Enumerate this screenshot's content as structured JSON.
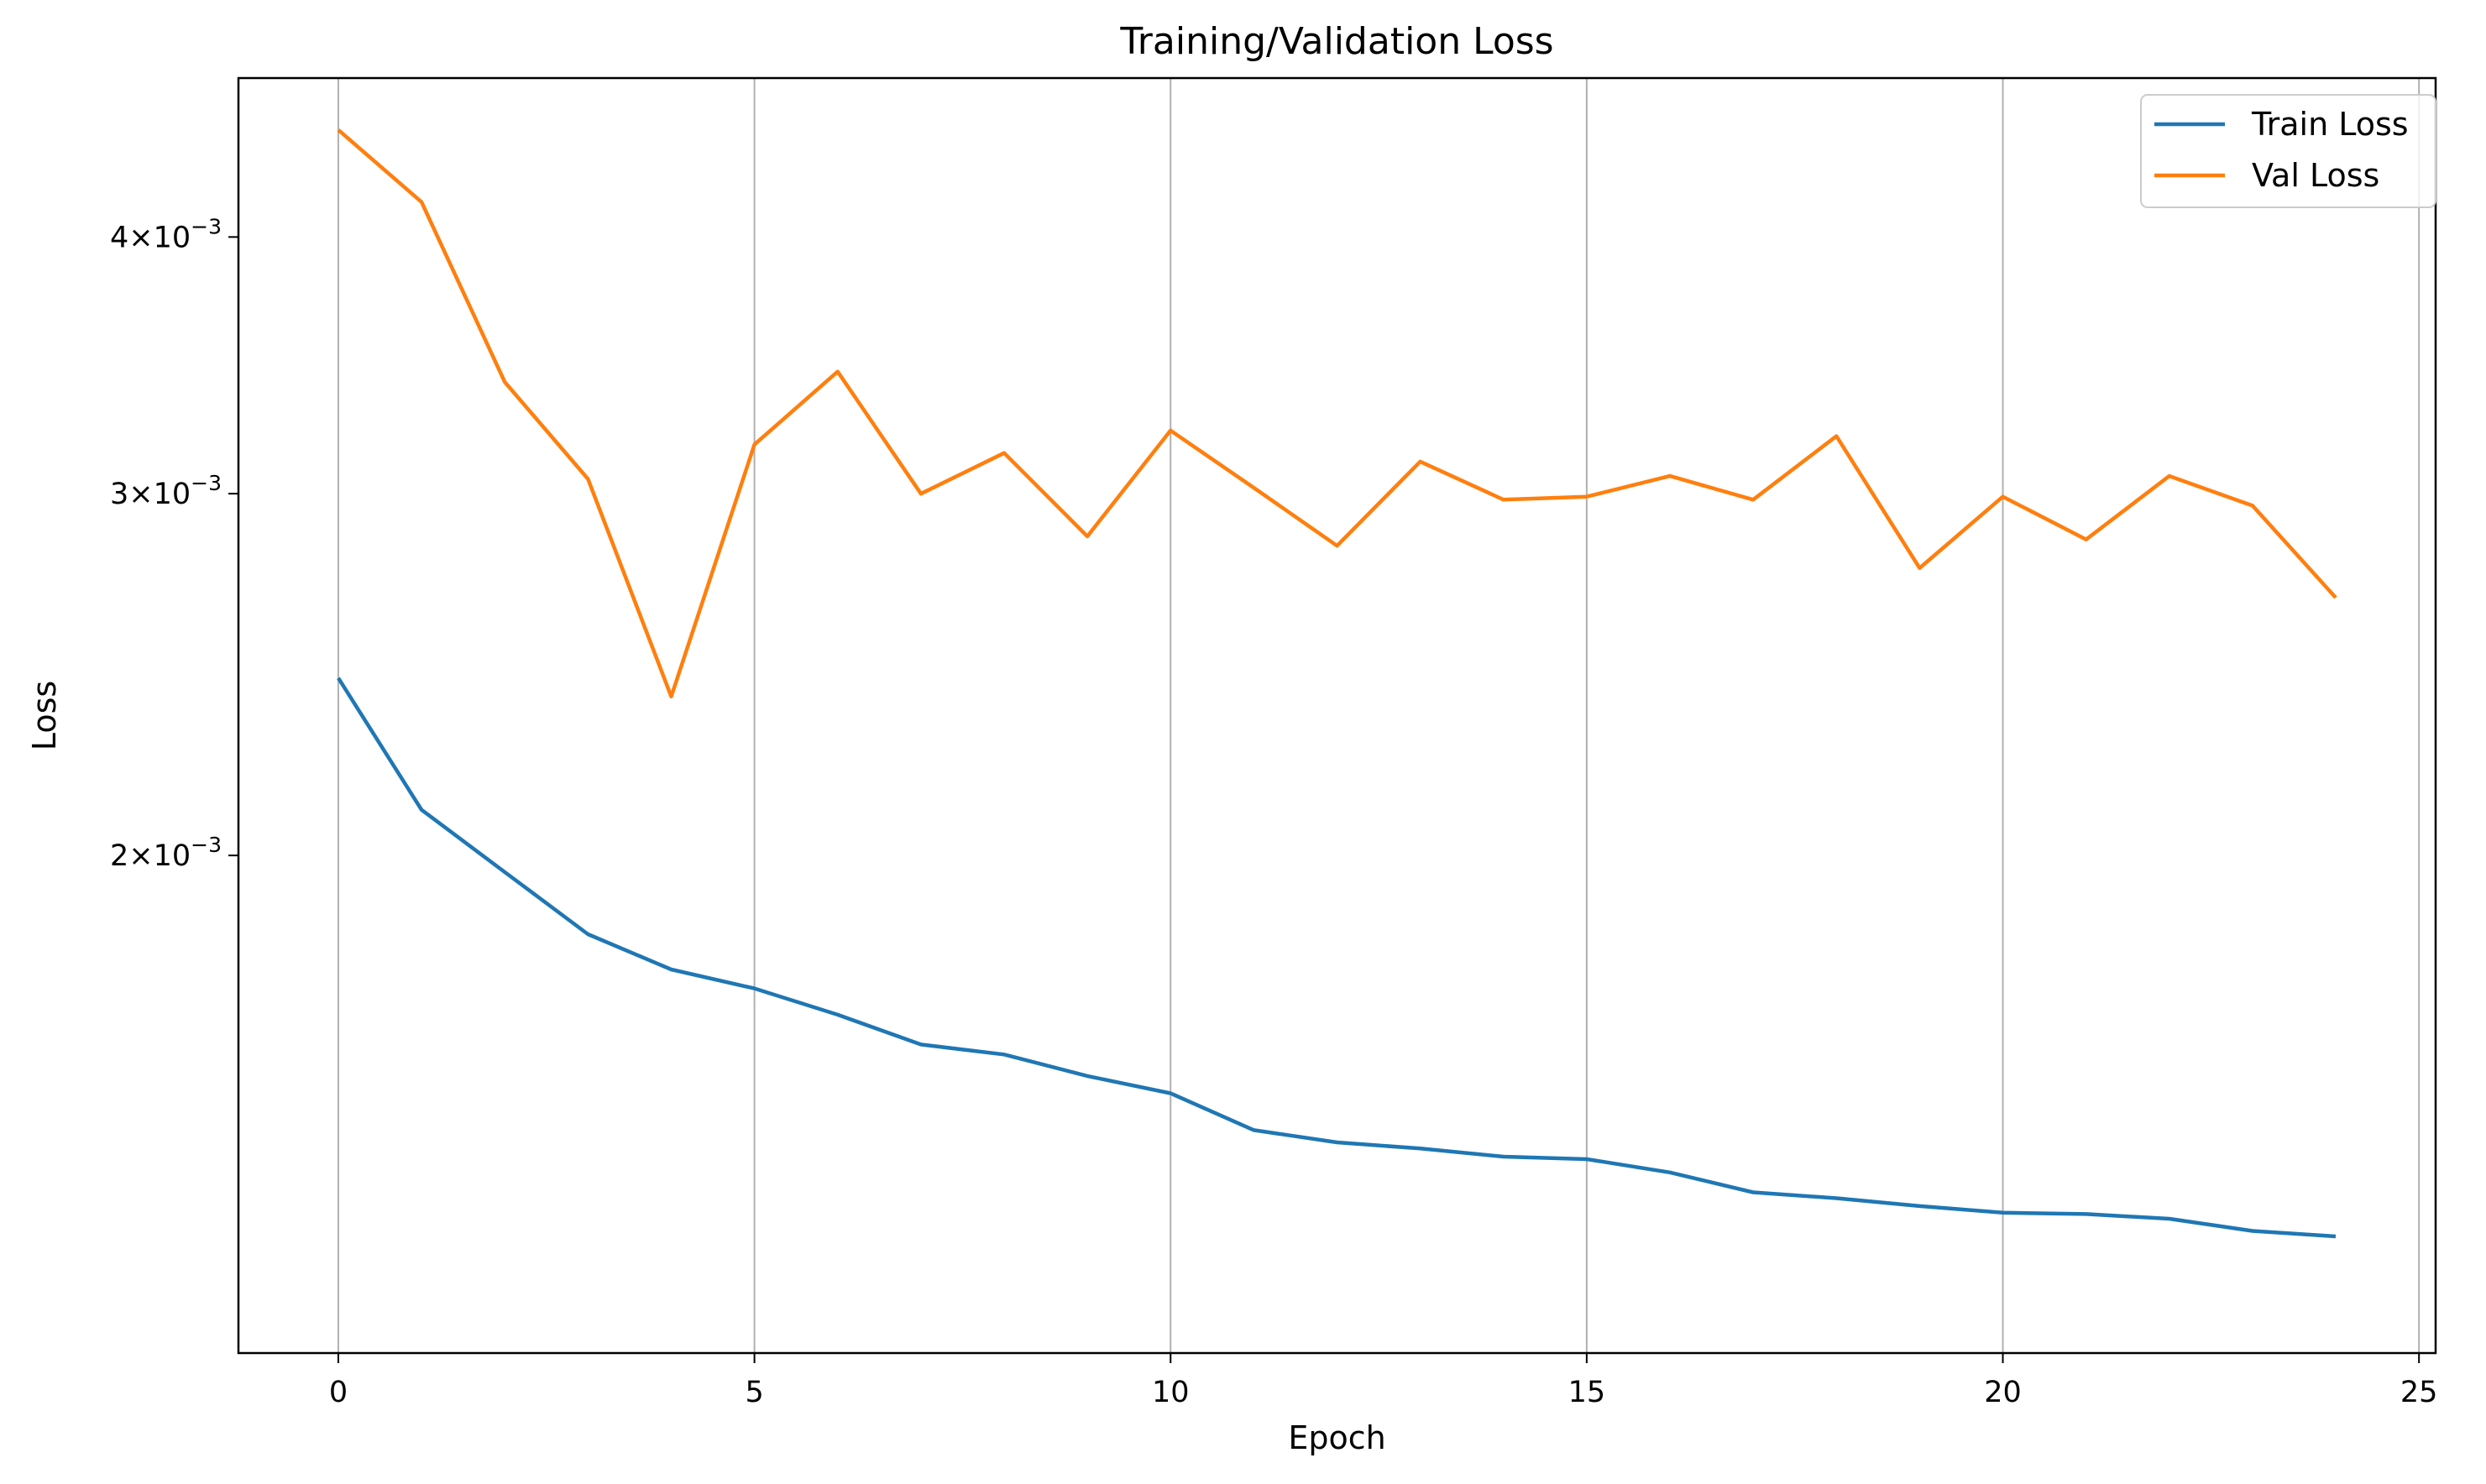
{
  "chart_data": {
    "type": "line",
    "title": "Training/Validation Loss",
    "xlabel": "Epoch",
    "ylabel": "Loss",
    "yscale": "log",
    "xlim": [
      -1.2,
      25.2
    ],
    "ylim": [
      0.001145,
      0.00478
    ],
    "grid": "x-only",
    "legend_position": "top-right",
    "x_ticks": [
      0,
      5,
      10,
      15,
      20,
      25
    ],
    "x_tick_labels": [
      "0",
      "5",
      "10",
      "15",
      "20",
      "25"
    ],
    "y_ticks": [
      {
        "value": 0.002,
        "mantissa": "2",
        "base": "10",
        "exponent": "−3"
      },
      {
        "value": 0.003,
        "mantissa": "3",
        "base": "10",
        "exponent": "−3"
      },
      {
        "value": 0.004,
        "mantissa": "4",
        "base": "10",
        "exponent": "−3"
      }
    ],
    "x": [
      0,
      1,
      2,
      3,
      4,
      5,
      6,
      7,
      8,
      9,
      10,
      11,
      12,
      13,
      14,
      15,
      16,
      17,
      18,
      19,
      20,
      21,
      22,
      23,
      24
    ],
    "series": [
      {
        "name": "Train Loss",
        "color": "#1f77b4",
        "values": [
          0.00244,
          0.002105,
          0.001963,
          0.001831,
          0.00176,
          0.001723,
          0.001673,
          0.001618,
          0.0016,
          0.001562,
          0.001532,
          0.00147,
          0.00145,
          0.00144,
          0.001427,
          0.001423,
          0.001402,
          0.001371,
          0.001362,
          0.00135,
          0.00134,
          0.001338,
          0.001331,
          0.001313,
          0.001305
        ]
      },
      {
        "name": "Val Loss",
        "color": "#ff7f0e",
        "values": [
          0.00451,
          0.00416,
          0.0034,
          0.00305,
          0.00239,
          0.00317,
          0.00344,
          0.003,
          0.00314,
          0.00286,
          0.00322,
          0.00302,
          0.00283,
          0.00311,
          0.00298,
          0.00299,
          0.00306,
          0.00298,
          0.0032,
          0.00276,
          0.00299,
          0.00285,
          0.00306,
          0.00296,
          0.00267
        ]
      }
    ]
  }
}
